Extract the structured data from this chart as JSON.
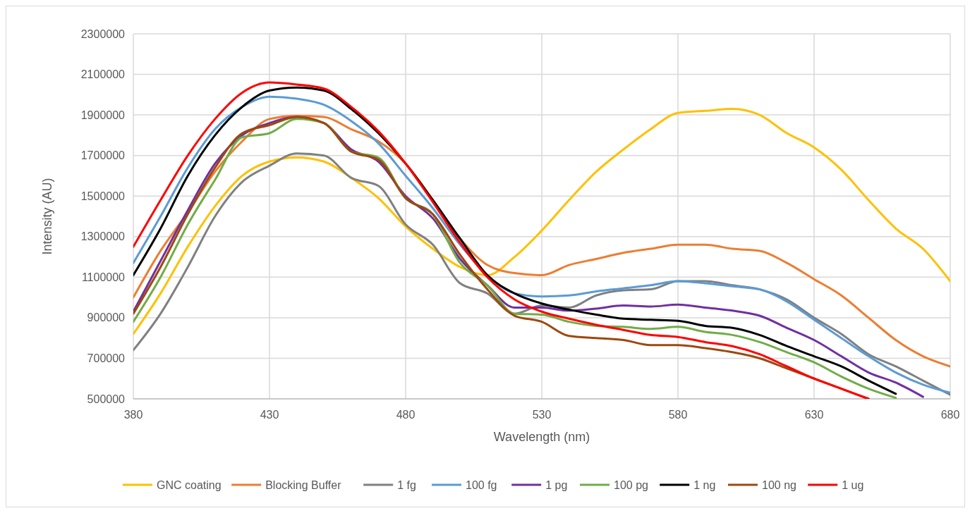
{
  "chart_data": {
    "type": "line",
    "xlabel": "Wavelength (nm)",
    "ylabel": "Intensity (AU)",
    "x": [
      380,
      390,
      400,
      410,
      420,
      430,
      440,
      450,
      460,
      470,
      480,
      490,
      500,
      510,
      520,
      530,
      540,
      550,
      560,
      570,
      580,
      590,
      600,
      610,
      620,
      630,
      640,
      650,
      660,
      670,
      680
    ],
    "xlim": [
      380,
      680
    ],
    "xticks": [
      380,
      430,
      480,
      530,
      580,
      630,
      680
    ],
    "ylim": [
      500000,
      2300000
    ],
    "yticks": [
      500000,
      700000,
      900000,
      1100000,
      1300000,
      1500000,
      1700000,
      1900000,
      2100000,
      2300000
    ],
    "grid": true,
    "legend": "bottom",
    "marker": "none",
    "line_style": "solid",
    "series": [
      {
        "name": "GNC coating",
        "color": "#ffc000",
        "values": [
          820000,
          1020000,
          1250000,
          1450000,
          1600000,
          1670000,
          1690000,
          1670000,
          1590000,
          1490000,
          1350000,
          1240000,
          1150000,
          1110000,
          1200000,
          1330000,
          1480000,
          1620000,
          1730000,
          1830000,
          1910000,
          1920000,
          1930000,
          1900000,
          1810000,
          1740000,
          1630000,
          1480000,
          1340000,
          1240000,
          1080000
        ]
      },
      {
        "name": "Blocking Buffer",
        "color": "#ed7d31",
        "values": [
          1000000,
          1230000,
          1420000,
          1620000,
          1770000,
          1880000,
          1895000,
          1890000,
          1830000,
          1770000,
          1660000,
          1480000,
          1290000,
          1160000,
          1120000,
          1110000,
          1160000,
          1190000,
          1220000,
          1240000,
          1260000,
          1260000,
          1240000,
          1230000,
          1170000,
          1090000,
          1010000,
          900000,
          790000,
          710000,
          660000
        ]
      },
      {
        "name": "1 fg",
        "color": "#808080",
        "values": [
          740000,
          920000,
          1150000,
          1400000,
          1570000,
          1650000,
          1710000,
          1700000,
          1590000,
          1550000,
          1360000,
          1260000,
          1070000,
          1020000,
          920000,
          960000,
          950000,
          1010000,
          1035000,
          1040000,
          1080000,
          1080000,
          1060000,
          1040000,
          990000,
          900000,
          820000,
          720000,
          660000,
          590000,
          520000
        ]
      },
      {
        "name": "100 fg",
        "color": "#5b9bd5",
        "values": [
          1170000,
          1400000,
          1640000,
          1830000,
          1940000,
          1990000,
          1980000,
          1950000,
          1870000,
          1760000,
          1600000,
          1440000,
          1260000,
          1110000,
          1020000,
          1005000,
          1010000,
          1030000,
          1045000,
          1060000,
          1080000,
          1070000,
          1055000,
          1040000,
          980000,
          890000,
          800000,
          710000,
          630000,
          570000,
          530000
        ]
      },
      {
        "name": "1 pg",
        "color": "#7030a0",
        "values": [
          930000,
          1180000,
          1430000,
          1660000,
          1800000,
          1860000,
          1890000,
          1860000,
          1730000,
          1670000,
          1500000,
          1390000,
          1190000,
          1060000,
          950000,
          950000,
          935000,
          945000,
          960000,
          955000,
          965000,
          950000,
          935000,
          910000,
          850000,
          790000,
          710000,
          630000,
          580000,
          510000,
          null
        ]
      },
      {
        "name": "100 pg",
        "color": "#70ad47",
        "values": [
          880000,
          1100000,
          1360000,
          1580000,
          1790000,
          1810000,
          1880000,
          1860000,
          1720000,
          1690000,
          1490000,
          1410000,
          1170000,
          1060000,
          920000,
          915000,
          880000,
          860000,
          855000,
          845000,
          855000,
          830000,
          815000,
          780000,
          730000,
          680000,
          610000,
          550000,
          505000,
          null,
          null
        ]
      },
      {
        "name": "1 ng",
        "color": "#000000",
        "values": [
          1110000,
          1340000,
          1600000,
          1800000,
          1940000,
          2020000,
          2035000,
          2020000,
          1930000,
          1810000,
          1660000,
          1480000,
          1290000,
          1110000,
          1020000,
          970000,
          940000,
          915000,
          895000,
          890000,
          885000,
          860000,
          850000,
          815000,
          760000,
          710000,
          660000,
          590000,
          525000,
          null,
          null
        ]
      },
      {
        "name": "100 ng",
        "color": "#9e480e",
        "values": [
          920000,
          1150000,
          1410000,
          1640000,
          1810000,
          1850000,
          1890000,
          1860000,
          1720000,
          1680000,
          1490000,
          1410000,
          1210000,
          1040000,
          910000,
          880000,
          810000,
          800000,
          790000,
          765000,
          765000,
          750000,
          730000,
          700000,
          650000,
          600000,
          550000,
          500000,
          null,
          null,
          null
        ]
      },
      {
        "name": "1 ug",
        "color": "#ff0000",
        "values": [
          1250000,
          1480000,
          1700000,
          1880000,
          2010000,
          2060000,
          2050000,
          2030000,
          1940000,
          1820000,
          1660000,
          1470000,
          1270000,
          1100000,
          990000,
          930000,
          895000,
          865000,
          840000,
          815000,
          805000,
          780000,
          760000,
          720000,
          660000,
          600000,
          550000,
          500000,
          null,
          null,
          null
        ]
      }
    ]
  }
}
